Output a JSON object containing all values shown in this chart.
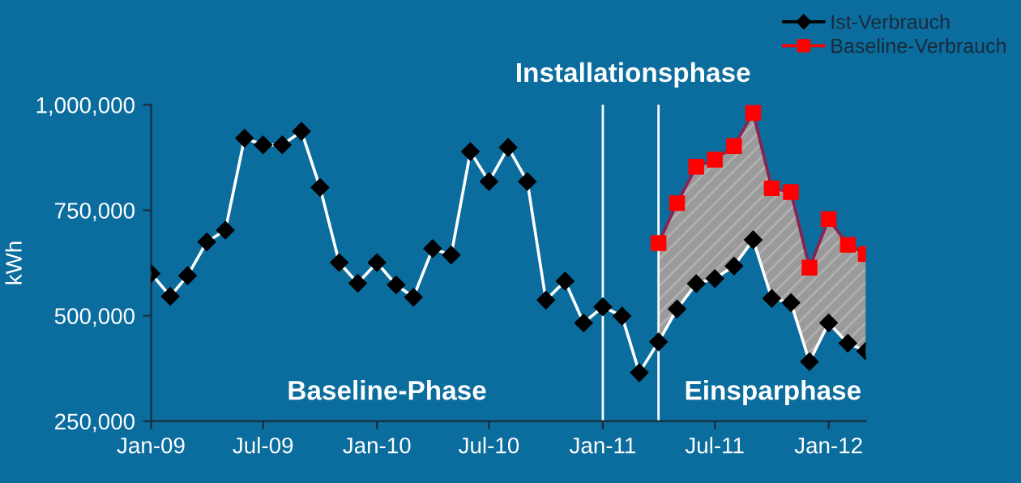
{
  "chart_data": {
    "type": "line",
    "ylabel": "kWh",
    "x": [
      "2009-01",
      "2009-02",
      "2009-03",
      "2009-04",
      "2009-05",
      "2009-06",
      "2009-07",
      "2009-08",
      "2009-09",
      "2009-10",
      "2009-11",
      "2009-12",
      "2010-01",
      "2010-02",
      "2010-03",
      "2010-04",
      "2010-05",
      "2010-06",
      "2010-07",
      "2010-08",
      "2010-09",
      "2010-10",
      "2010-11",
      "2010-12",
      "2011-01",
      "2011-02",
      "2011-03",
      "2011-04",
      "2011-05",
      "2011-06",
      "2011-07",
      "2011-08",
      "2011-09",
      "2011-10",
      "2011-11",
      "2011-12",
      "2012-01",
      "2012-02",
      "2012-03"
    ],
    "series": [
      {
        "name": "Ist-Verbrauch",
        "color": "#000000",
        "marker": "diamond",
        "values": [
          600000,
          546000,
          595000,
          675000,
          703000,
          921000,
          905000,
          905000,
          937000,
          804000,
          626000,
          577000,
          626000,
          573000,
          544000,
          659000,
          644000,
          889000,
          818000,
          899000,
          818000,
          537000,
          582000,
          483000,
          521000,
          499000,
          365000,
          438000,
          516000,
          576000,
          588000,
          618000,
          680000,
          541000,
          531000,
          391000,
          483000,
          435000,
          416000
        ]
      },
      {
        "name": "Baseline-Verbrauch",
        "color": "#ff0000",
        "marker": "square",
        "x": [
          "2011-04",
          "2011-05",
          "2011-06",
          "2011-07",
          "2011-08",
          "2011-09",
          "2011-10",
          "2011-11",
          "2011-12",
          "2012-01",
          "2012-02",
          "2012-03"
        ],
        "values": [
          672000,
          767000,
          853000,
          870000,
          902000,
          981000,
          802000,
          793000,
          614000,
          729000,
          668000,
          646000
        ],
        "lower": [
          438000,
          516000,
          576000,
          588000,
          618000,
          680000,
          541000,
          531000,
          391000,
          483000,
          435000,
          416000
        ],
        "upper": [
          672000,
          767000,
          853000,
          870000,
          902000,
          981000,
          802000,
          793000,
          614000,
          729000,
          668000,
          646000
        ]
      }
    ],
    "xlim": [
      "2009-01",
      "2012-03"
    ],
    "xticks": [
      {
        "value": "2009-01",
        "label": "Jan-09"
      },
      {
        "value": "2009-07",
        "label": "Jul-09"
      },
      {
        "value": "2010-01",
        "label": "Jan-10"
      },
      {
        "value": "2010-07",
        "label": "Jul-10"
      },
      {
        "value": "2011-01",
        "label": "Jan-11"
      },
      {
        "value": "2011-07",
        "label": "Jul-11"
      },
      {
        "value": "2012-01",
        "label": "Jan-12"
      }
    ],
    "ylim": [
      250000,
      1000000
    ],
    "yticks": [
      {
        "value": 250000,
        "label": "250,000"
      },
      {
        "value": 500000,
        "label": "500,000"
      },
      {
        "value": 750000,
        "label": "750,000"
      },
      {
        "value": 1000000,
        "label": "1,000,000"
      }
    ],
    "ref_lines": [
      {
        "axis": "x",
        "value": "2011-01",
        "color": "#ffffff"
      },
      {
        "axis": "x",
        "value": "2011-04",
        "color": "#ffffff"
      }
    ],
    "annotations": [
      "Installationsphase",
      "Baseline-Phase",
      "Einsparphase"
    ],
    "legend": "top right",
    "grid": false
  }
}
